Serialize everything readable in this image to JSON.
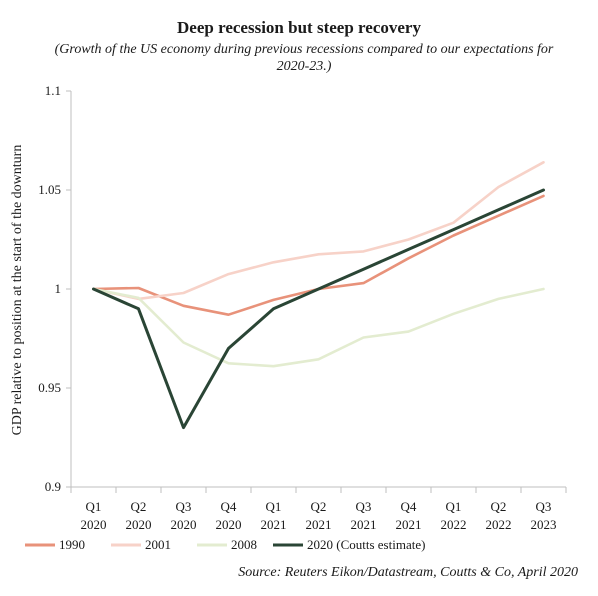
{
  "chart_data": {
    "type": "line",
    "title": "Deep recession but steep recovery",
    "subtitle": "(Growth of the US economy during previous recessions compared to our expectations for 2020-23.)",
    "ylabel": "GDP relative to position at the start of the downturn",
    "xlabel": "",
    "ylim": [
      0.9,
      1.1
    ],
    "yticks": [
      "0.9",
      "0.95",
      "1",
      "1.05",
      "1.1"
    ],
    "yticks_values": [
      0.9,
      0.95,
      1.0,
      1.05,
      1.1
    ],
    "categories": [
      [
        "Q1",
        "2020"
      ],
      [
        "Q2",
        "2020"
      ],
      [
        "Q3",
        "2020"
      ],
      [
        "Q4",
        "2020"
      ],
      [
        "Q1",
        "2021"
      ],
      [
        "Q2",
        "2021"
      ],
      [
        "Q3",
        "2021"
      ],
      [
        "Q4",
        "2021"
      ],
      [
        "Q1",
        "2022"
      ],
      [
        "Q2",
        "2022"
      ],
      [
        "Q3",
        "2023"
      ]
    ],
    "series": [
      {
        "name": "1990",
        "color": "#e8927a",
        "values": [
          1.0,
          1.0005,
          0.9915,
          0.987,
          0.9945,
          1.0,
          1.003,
          1.0155,
          1.027,
          1.037,
          1.047
        ]
      },
      {
        "name": "2001",
        "color": "#f7d2c8",
        "values": [
          1.0,
          0.995,
          0.998,
          1.0075,
          1.0135,
          1.0175,
          1.019,
          1.025,
          1.0335,
          1.0515,
          1.064
        ]
      },
      {
        "name": "2008",
        "color": "#e3ecd0",
        "values": [
          1.0,
          0.9955,
          0.973,
          0.9625,
          0.961,
          0.9645,
          0.9755,
          0.9785,
          0.9875,
          0.995,
          1.0
        ]
      },
      {
        "name": "2020 (Coutts estimate)",
        "color": "#2a4535",
        "values": [
          1.0,
          0.99,
          0.93,
          0.97,
          0.99,
          1.0,
          1.01,
          1.02,
          1.03,
          1.04,
          1.05
        ]
      }
    ],
    "grid": false,
    "legend_position": "bottom"
  },
  "source": "Source: Reuters Eikon/Datastream, Coutts & Co, April 2020"
}
